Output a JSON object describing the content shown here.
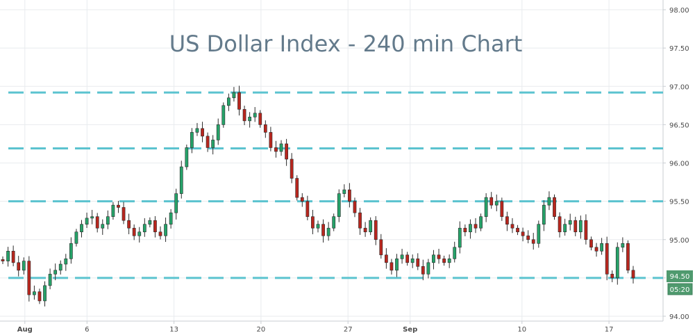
{
  "chart_data": {
    "type": "candlestick",
    "title": "US Dollar Index - 240 min Chart",
    "xlabel": "",
    "ylabel": "",
    "ylim": [
      94.0,
      98.0
    ],
    "y_ticks": [
      "94.00",
      "94.50",
      "95.00",
      "95.50",
      "96.00",
      "96.50",
      "97.00",
      "97.50",
      "98.00"
    ],
    "x_ticks": [
      {
        "label": "Aug",
        "bold": true,
        "date": "2018-08-01"
      },
      {
        "label": "6",
        "bold": false,
        "date": "2018-08-06"
      },
      {
        "label": "13",
        "bold": false,
        "date": "2018-08-13"
      },
      {
        "label": "20",
        "bold": false,
        "date": "2018-08-20"
      },
      {
        "label": "27",
        "bold": false,
        "date": "2018-08-27"
      },
      {
        "label": "Sep",
        "bold": true,
        "date": "2018-09-01"
      },
      {
        "label": "10",
        "bold": false,
        "date": "2018-09-10"
      },
      {
        "label": "17",
        "bold": false,
        "date": "2018-09-17"
      }
    ],
    "grid": true,
    "colors": {
      "up": "#26a269",
      "down": "#b8261e",
      "level": "#5bc3cf",
      "badge": "#4f9a6e"
    },
    "horizontal_levels": [
      96.92,
      96.19,
      95.5,
      94.5
    ],
    "current_price_label": "94.50",
    "countdown_label": "05:20",
    "prices": [
      94.72,
      94.85,
      94.7,
      94.6,
      94.72,
      94.28,
      94.32,
      94.2,
      94.4,
      94.55,
      94.6,
      94.68,
      94.75,
      94.95,
      95.1,
      95.2,
      95.28,
      95.3,
      95.15,
      95.2,
      95.3,
      95.45,
      95.42,
      95.25,
      95.15,
      95.05,
      95.1,
      95.2,
      95.25,
      95.1,
      95.05,
      95.2,
      95.35,
      95.6,
      95.95,
      96.2,
      96.4,
      96.45,
      96.35,
      96.2,
      96.3,
      96.5,
      96.75,
      96.85,
      96.92,
      96.7,
      96.55,
      96.6,
      96.65,
      96.5,
      96.4,
      96.2,
      96.15,
      96.25,
      96.05,
      95.8,
      95.55,
      95.5,
      95.3,
      95.15,
      95.2,
      95.05,
      95.15,
      95.3,
      95.6,
      95.65,
      95.5,
      95.35,
      95.15,
      95.1,
      95.25,
      95.0,
      94.8,
      94.7,
      94.6,
      94.75,
      94.8,
      94.7,
      94.75,
      94.65,
      94.55,
      94.7,
      94.8,
      94.75,
      94.7,
      94.75,
      94.9,
      95.15,
      95.1,
      95.2,
      95.15,
      95.3,
      95.55,
      95.45,
      95.5,
      95.3,
      95.2,
      95.15,
      95.1,
      95.05,
      95.0,
      94.95,
      95.2,
      95.45,
      95.55,
      95.3,
      95.1,
      95.2,
      95.25,
      95.1,
      95.25,
      95.0,
      94.9,
      94.85,
      94.95,
      94.55,
      94.5,
      94.9,
      94.95,
      94.6,
      94.5
    ]
  }
}
